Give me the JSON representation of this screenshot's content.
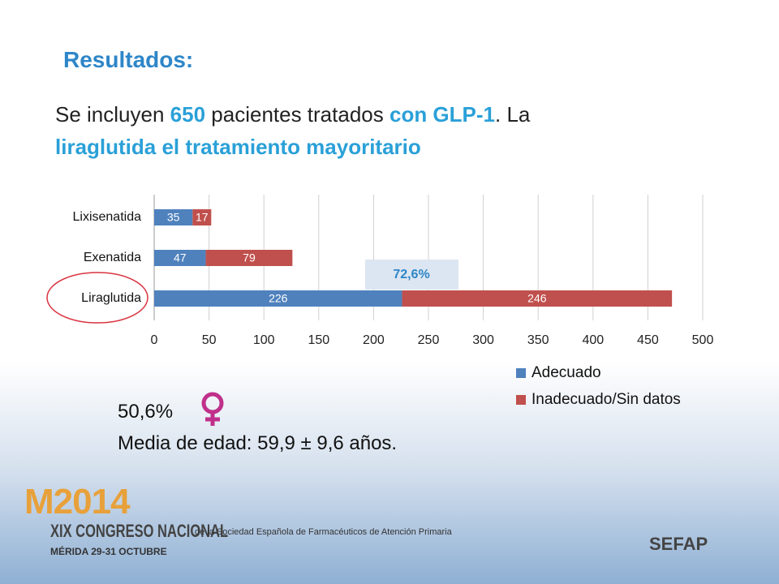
{
  "slide": {
    "title": "Resultados:",
    "intro": [
      "Se incluyen",
      "650",
      "pacientes tratados",
      "con GLP-1",
      ". La",
      "liraglutida el tratamiento mayoritario"
    ],
    "female_share": "50,6%",
    "age": "Media de edad: 59,9 ± 9,6 años.",
    "congress": {
      "edition": "M2014",
      "name": "XIX CONGRESO NACIONAL",
      "society": "de la Sociedad Española de Farmacéuticos de Atención Primaria",
      "place": "MÉRIDA 29-31 OCTUBRE"
    },
    "logo": "SEFAP"
  },
  "chart_data": {
    "type": "stacked-barh",
    "categories": [
      "Lixisenatida",
      "Exenatida",
      "Liraglutida"
    ],
    "series": [
      {
        "name": "Adecuado",
        "color": "#4f81bd",
        "values": [
          35,
          47,
          226
        ]
      },
      {
        "name": "Inadecuado/Sin datos",
        "color": "#c0504d",
        "values": [
          17,
          79,
          246
        ]
      }
    ],
    "xlim": [
      0,
      500
    ],
    "xticks": [
      0,
      50,
      100,
      150,
      200,
      250,
      300,
      350,
      400,
      450,
      500
    ],
    "grid": true,
    "legend": "bottom-right",
    "annotation": "72,6%"
  }
}
